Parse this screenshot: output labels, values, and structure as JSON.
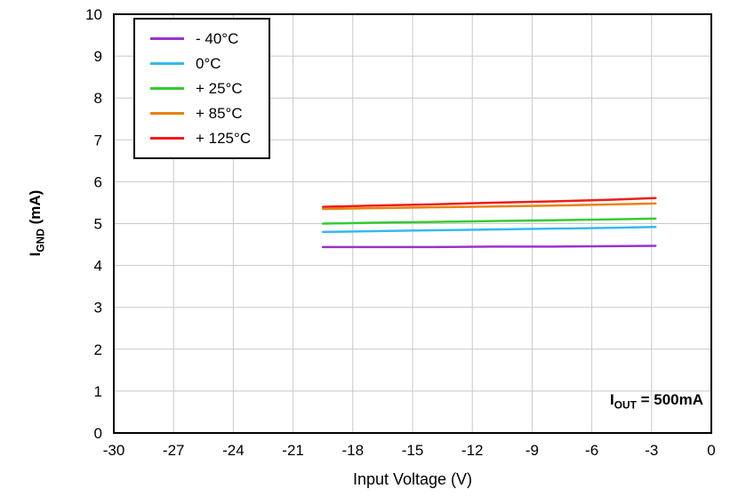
{
  "chart_data": {
    "type": "line",
    "title": "",
    "xlabel": "Input Voltage (V)",
    "ylabel": {
      "pre": "I",
      "sub": "GND",
      "post": " (mA)"
    },
    "annotation": {
      "pre": "I",
      "sub": "OUT",
      "post": " = 500mA"
    },
    "xlim": [
      -30,
      0
    ],
    "ylim": [
      0,
      10
    ],
    "xticks": [
      -30,
      -27,
      -24,
      -21,
      -18,
      -15,
      -12,
      -9,
      -6,
      -3,
      0
    ],
    "yticks": [
      0,
      1,
      2,
      3,
      4,
      5,
      6,
      7,
      8,
      9,
      10
    ],
    "grid": true,
    "grid_color": "#c8c8c8",
    "axis_color": "#000000",
    "legend_position": "top-left",
    "x": [
      -19.5,
      -17,
      -14,
      -11,
      -8,
      -5,
      -2.8
    ],
    "series": [
      {
        "name": "- 40°C",
        "color": "#9933cc",
        "y": [
          4.44,
          4.44,
          4.44,
          4.45,
          4.45,
          4.46,
          4.47
        ]
      },
      {
        "name": "0°C",
        "color": "#33bbee",
        "y": [
          4.8,
          4.82,
          4.84,
          4.86,
          4.88,
          4.9,
          4.92
        ]
      },
      {
        "name": "+ 25°C",
        "color": "#33cc33",
        "y": [
          5.0,
          5.02,
          5.04,
          5.06,
          5.08,
          5.1,
          5.12
        ]
      },
      {
        "name": "+ 85°C",
        "color": "#e8820c",
        "y": [
          5.35,
          5.37,
          5.39,
          5.41,
          5.43,
          5.46,
          5.48
        ]
      },
      {
        "name": "+ 125°C",
        "color": "#ee1c1c",
        "y": [
          5.4,
          5.43,
          5.46,
          5.5,
          5.53,
          5.57,
          5.61
        ]
      }
    ]
  }
}
